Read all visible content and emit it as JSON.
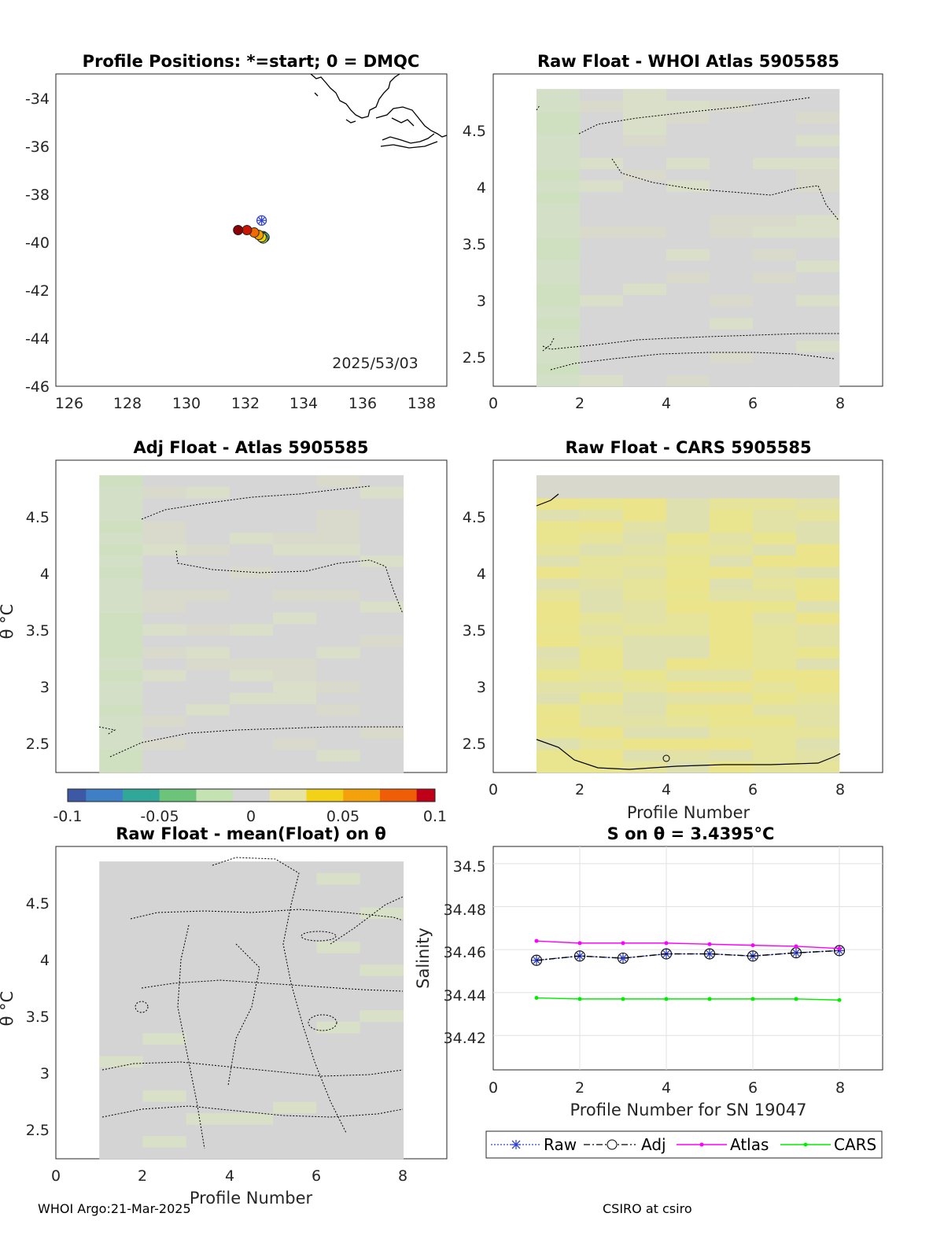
{
  "colors": {
    "raw": "#3344cc",
    "adj": "#000000",
    "atlas": "#ff00ff",
    "cars": "#00ee00",
    "panel_bg": "#d6d6d6",
    "colormap": [
      "#3d59a6",
      "#3f7fc6",
      "#31a79a",
      "#6cc37a",
      "#c4e2b2",
      "#d6d6d6",
      "#e7e4a2",
      "#f2d219",
      "#f4a20b",
      "#ef5d06",
      "#c00018"
    ]
  },
  "panels": {
    "map": {
      "title": "Profile Positions: *=start; 0 = DMQC",
      "date_label": "2025/53/03",
      "x_ticks": [
        "126",
        "128",
        "130",
        "132",
        "134",
        "136",
        "138"
      ],
      "y_ticks": [
        "-34",
        "-36",
        "-38",
        "-40",
        "-42",
        "-44",
        "-46"
      ]
    },
    "raw_whoi": {
      "title": "Raw Float - WHOI Atlas  5905585",
      "x_ticks": [
        "0",
        "2",
        "4",
        "6",
        "8"
      ],
      "y_ticks": [
        "2.5",
        "3",
        "3.5",
        "4",
        "4.5"
      ]
    },
    "adj_atlas": {
      "title": "Adj Float - Atlas  5905585",
      "ylabel": "θ °C",
      "y_ticks": [
        "2.5",
        "3",
        "3.5",
        "4",
        "4.5"
      ]
    },
    "raw_cars": {
      "title": "Raw Float - CARS  5905585",
      "xlabel": "Profile Number",
      "x_ticks": [
        "0",
        "2",
        "4",
        "6",
        "8"
      ],
      "y_ticks": [
        "2.5",
        "3",
        "3.5",
        "4",
        "4.5"
      ]
    },
    "colorbar": {
      "tick_labels": [
        "-0.1",
        "-0.05",
        "0",
        "0.05",
        "0.1"
      ]
    },
    "raw_mean": {
      "title": "Raw Float - mean(Float) on θ",
      "xlabel": "Profile Number",
      "ylabel": "θ °C",
      "x_ticks": [
        "0",
        "2",
        "4",
        "6",
        "8"
      ],
      "y_ticks": [
        "2.5",
        "3",
        "3.5",
        "4",
        "4.5"
      ]
    },
    "salinity": {
      "title": "S on θ = 3.4395°C",
      "xlabel": "Profile Number for SN 19047",
      "ylabel": "Salinity",
      "x_ticks": [
        "0",
        "2",
        "4",
        "6",
        "8"
      ],
      "y_ticks": [
        "34.42",
        "34.44",
        "34.46",
        "34.48",
        "34.5"
      ]
    }
  },
  "legend": {
    "raw": "Raw",
    "adj": "Adj",
    "atlas": "Atlas",
    "cars": "CARS"
  },
  "footer": {
    "left": "WHOI Argo:21-Mar-2025",
    "right": "CSIRO at csiro"
  },
  "chart_data": [
    {
      "type": "scatter",
      "title": "Profile Positions: *=start; 0 = DMQC",
      "xlim": [
        125.5,
        138.8
      ],
      "ylim": [
        -46,
        -33
      ],
      "start": {
        "x": 132.5,
        "y": -39.1
      },
      "series": [
        {
          "x": [
            131.7,
            132.0,
            132.25,
            132.4,
            132.5,
            132.55,
            132.6,
            132.55
          ],
          "y": [
            -39.5,
            -39.5,
            -39.6,
            -39.7,
            -39.8,
            -39.85,
            -39.8,
            -39.75
          ]
        }
      ]
    },
    {
      "type": "heatmap",
      "title": "Raw Float - WHOI Atlas  5905585",
      "x": [
        1,
        2,
        3,
        4,
        5,
        6,
        7,
        8
      ],
      "xlim": [
        0,
        9
      ],
      "ylim": [
        2.25,
        4.95
      ],
      "colorbar_range": [
        -0.1,
        0.1
      ]
    },
    {
      "type": "heatmap",
      "title": "Adj Float - Atlas  5905585",
      "x": [
        1,
        2,
        3,
        4,
        5,
        6,
        7,
        8
      ],
      "xlim": [
        0,
        9
      ],
      "ylim": [
        2.25,
        4.95
      ],
      "colorbar_range": [
        -0.1,
        0.1
      ]
    },
    {
      "type": "heatmap",
      "title": "Raw Float - CARS  5905585",
      "x": [
        1,
        2,
        3,
        4,
        5,
        6,
        7,
        8
      ],
      "xlim": [
        0,
        9
      ],
      "ylim": [
        2.25,
        4.95
      ],
      "colorbar_range": [
        -0.1,
        0.1
      ]
    },
    {
      "type": "heatmap",
      "title": "Raw Float - mean(Float) on θ",
      "x": [
        1,
        2,
        3,
        4,
        5,
        6,
        7,
        8
      ],
      "xlim": [
        0,
        9
      ],
      "ylim": [
        2.25,
        4.95
      ],
      "colorbar_range": [
        -0.1,
        0.1
      ]
    },
    {
      "type": "line",
      "title": "S on θ = 3.4395°C",
      "xlim": [
        0,
        9
      ],
      "ylim": [
        34.404,
        34.508
      ],
      "grid": true,
      "legend_position": "bottom",
      "x": [
        1,
        2,
        3,
        4,
        5,
        6,
        7,
        8
      ],
      "series": [
        {
          "name": "Raw",
          "values": [
            34.455,
            34.457,
            34.456,
            34.458,
            34.458,
            34.457,
            34.4585,
            34.4595
          ]
        },
        {
          "name": "Adj",
          "values": [
            34.455,
            34.457,
            34.456,
            34.458,
            34.458,
            34.457,
            34.4585,
            34.4595
          ]
        },
        {
          "name": "Atlas",
          "values": [
            34.464,
            34.463,
            34.463,
            34.463,
            34.4625,
            34.462,
            34.4615,
            34.4605
          ]
        },
        {
          "name": "CARS",
          "values": [
            34.4375,
            34.437,
            34.437,
            34.437,
            34.437,
            34.437,
            34.437,
            34.4365
          ]
        }
      ]
    }
  ]
}
